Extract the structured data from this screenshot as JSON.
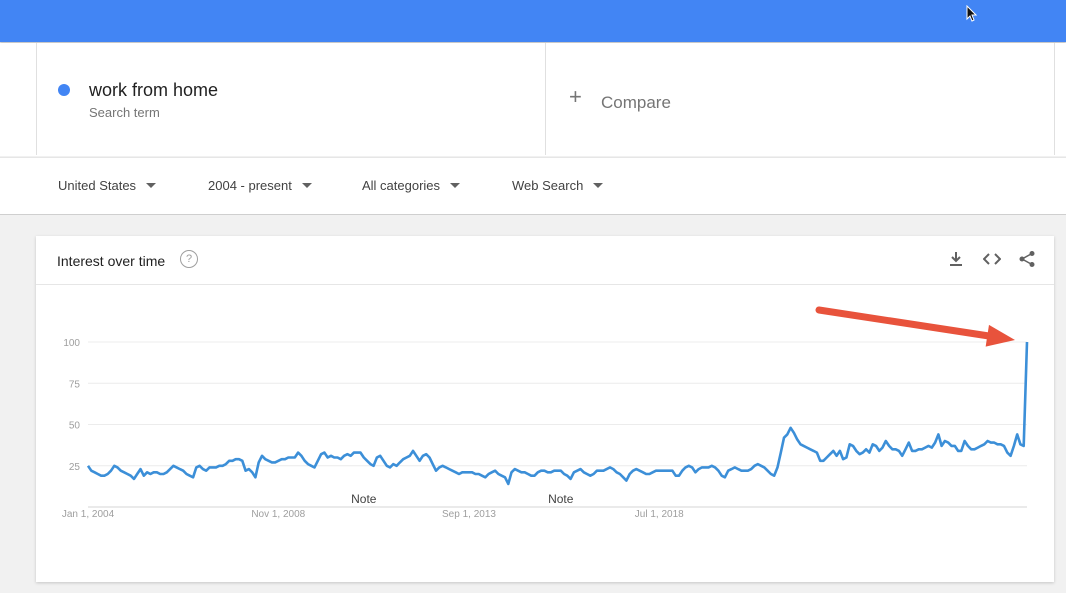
{
  "search": {
    "term": "work from home",
    "term_label": "Search term",
    "term_color": "#4285f4",
    "compare_label": "Compare"
  },
  "filters": [
    {
      "label": "United States"
    },
    {
      "label": "2004 - present"
    },
    {
      "label": "All categories"
    },
    {
      "label": "Web Search"
    }
  ],
  "card": {
    "title": "Interest over time",
    "help_glyph": "?",
    "tools": [
      "download-icon",
      "embed-icon",
      "share-icon"
    ]
  },
  "chart_data": {
    "type": "line",
    "title": "Interest over time",
    "xlabel": "",
    "ylabel": "",
    "ylim": [
      0,
      100
    ],
    "yticks": [
      25,
      50,
      75,
      100
    ],
    "xticks": [
      {
        "label": "Jan 1, 2004",
        "year": 2004.0
      },
      {
        "label": "Nov 1, 2008",
        "year": 2008.83
      },
      {
        "label": "Sep 1, 2013",
        "year": 2013.67
      },
      {
        "label": "Jul 1, 2018",
        "year": 2018.5
      }
    ],
    "notes": [
      {
        "label": "Note",
        "year": 2011.0
      },
      {
        "label": "Note",
        "year": 2016.0
      }
    ],
    "line_color": "#3c8fd8",
    "grid": true,
    "annotation": {
      "type": "arrow",
      "color": "#e8533c",
      "points_to": "final spike at 100"
    },
    "series": [
      {
        "x_start": 2004.0,
        "x_step_months": 1,
        "values": [
          25,
          22,
          21,
          20,
          19,
          19,
          20,
          22,
          25,
          24,
          22,
          21,
          20,
          19,
          17,
          20,
          23,
          19,
          21,
          20,
          21,
          21,
          20,
          20,
          21,
          23,
          25,
          24,
          23,
          22,
          20,
          19,
          18,
          24,
          25,
          23,
          22,
          24,
          24,
          24,
          25,
          25,
          26,
          28,
          28,
          29,
          29,
          28,
          22,
          23,
          21,
          18,
          27,
          31,
          29,
          28,
          27,
          27,
          28,
          29,
          29,
          30,
          30,
          30,
          33,
          31,
          28,
          26,
          25,
          24,
          28,
          32,
          33,
          30,
          31,
          30,
          30,
          29,
          31,
          32,
          31,
          33,
          33,
          33,
          30,
          28,
          26,
          25,
          30,
          31,
          28,
          25,
          24,
          26,
          25,
          27,
          29,
          30,
          31,
          34,
          31,
          28,
          31,
          32,
          30,
          26,
          22,
          24,
          25,
          24,
          23,
          22,
          21,
          20,
          21,
          21,
          21,
          21,
          20,
          20,
          19,
          18,
          20,
          21,
          22,
          20,
          19,
          18,
          14,
          21,
          23,
          22,
          21,
          21,
          20,
          19,
          19,
          21,
          22,
          22,
          21,
          21,
          22,
          22,
          22,
          20,
          19,
          17,
          21,
          22,
          23,
          21,
          20,
          19,
          20,
          22,
          22,
          22,
          23,
          24,
          23,
          21,
          20,
          18,
          16,
          20,
          22,
          23,
          22,
          21,
          20,
          20,
          21,
          22,
          22,
          22,
          22,
          22,
          22,
          19,
          19,
          22,
          24,
          25,
          24,
          21,
          23,
          24,
          24,
          24,
          25,
          24,
          22,
          19,
          18,
          22,
          23,
          24,
          23,
          22,
          22,
          22,
          23,
          25,
          26,
          25,
          24,
          22,
          20,
          19,
          24,
          33,
          42,
          44,
          48,
          45,
          41,
          38,
          37,
          36,
          35,
          34,
          33,
          28,
          28,
          30,
          32,
          34,
          31,
          34,
          29,
          30,
          38,
          37,
          34,
          32,
          33,
          35,
          33,
          38,
          37,
          34,
          36,
          40,
          37,
          35,
          35,
          34,
          31,
          35,
          39,
          34,
          34,
          35,
          35,
          36,
          37,
          36,
          39,
          44,
          37,
          40,
          39,
          37,
          37,
          34,
          34,
          40,
          37,
          35,
          35,
          36,
          37,
          38,
          40,
          39,
          39,
          38,
          38,
          37,
          33,
          31,
          37,
          44,
          38,
          37,
          100
        ]
      }
    ]
  }
}
